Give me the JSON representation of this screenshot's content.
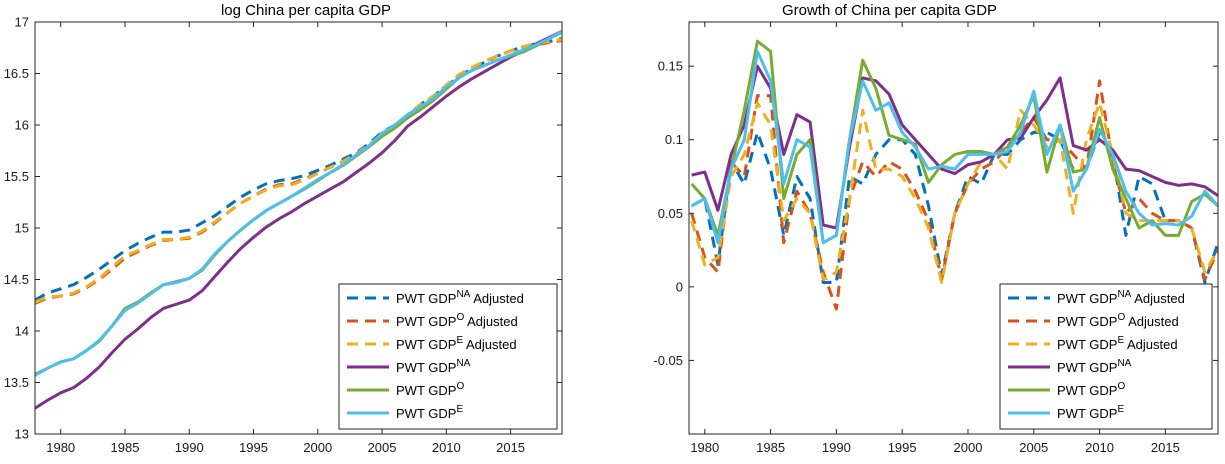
{
  "chart_data": [
    {
      "type": "line",
      "title": "log China per capita GDP",
      "xlabel": "",
      "ylabel": "",
      "xlim": [
        1978,
        2019
      ],
      "ylim": [
        13,
        17
      ],
      "grid": false,
      "legend_position": "bottom-right",
      "x_ticks": [
        "1980",
        "1985",
        "1990",
        "1995",
        "2000",
        "2005",
        "2010",
        "2015"
      ],
      "y_ticks": [
        "13",
        "13.5",
        "14",
        "14.5",
        "15",
        "15.5",
        "16",
        "16.5",
        "17"
      ],
      "x": [
        1978,
        1979,
        1980,
        1981,
        1982,
        1983,
        1984,
        1985,
        1986,
        1987,
        1988,
        1989,
        1990,
        1991,
        1992,
        1993,
        1994,
        1995,
        1996,
        1997,
        1998,
        1999,
        2000,
        2001,
        2002,
        2003,
        2004,
        2005,
        2006,
        2007,
        2008,
        2009,
        2010,
        2011,
        2012,
        2013,
        2014,
        2015,
        2016,
        2017,
        2018,
        2019
      ],
      "series": [
        {
          "name": "PWT GDP",
          "sup": "NA",
          "suffix": " Adjusted",
          "color": "#0072BD",
          "dash": true,
          "values": [
            14.3,
            14.37,
            14.41,
            14.45,
            14.52,
            14.6,
            14.69,
            14.78,
            14.85,
            14.91,
            14.96,
            14.96,
            14.98,
            15.05,
            15.12,
            15.21,
            15.3,
            15.37,
            15.43,
            15.46,
            15.48,
            15.51,
            15.56,
            15.61,
            15.67,
            15.73,
            15.82,
            15.93,
            16.0,
            16.1,
            16.2,
            16.28,
            16.38,
            16.47,
            16.55,
            16.61,
            16.67,
            16.72,
            16.76,
            16.79,
            16.81,
            16.84
          ]
        },
        {
          "name": "PWT GDP",
          "sup": "O",
          "suffix": " Adjusted",
          "color": "#D95319",
          "dash": true,
          "values": [
            14.27,
            14.32,
            14.34,
            14.36,
            14.42,
            14.5,
            14.6,
            14.71,
            14.77,
            14.83,
            14.88,
            14.89,
            14.9,
            14.96,
            15.05,
            15.15,
            15.24,
            15.31,
            15.38,
            15.42,
            15.43,
            15.48,
            15.53,
            15.59,
            15.65,
            15.72,
            15.8,
            15.9,
            15.99,
            16.09,
            16.19,
            16.27,
            16.38,
            16.48,
            16.55,
            16.62,
            16.67,
            16.72,
            16.76,
            16.78,
            16.8,
            16.82
          ]
        },
        {
          "name": "PWT GDP",
          "sup": "E",
          "suffix": " Adjusted",
          "color": "#EDB120",
          "dash": true,
          "values": [
            14.28,
            14.33,
            14.34,
            14.37,
            14.43,
            14.51,
            14.62,
            14.73,
            14.78,
            14.84,
            14.89,
            14.89,
            14.91,
            14.97,
            15.06,
            15.15,
            15.24,
            15.31,
            15.37,
            15.41,
            15.42,
            15.47,
            15.53,
            15.59,
            15.65,
            15.72,
            15.81,
            15.91,
            16.0,
            16.1,
            16.2,
            16.28,
            16.39,
            16.49,
            16.56,
            16.62,
            16.67,
            16.72,
            16.76,
            16.79,
            16.81,
            16.83
          ]
        },
        {
          "name": "PWT GDP",
          "sup": "NA",
          "suffix": "",
          "color": "#7E2F8E",
          "dash": false,
          "values": [
            13.25,
            13.33,
            13.4,
            13.45,
            13.54,
            13.65,
            13.79,
            13.92,
            14.02,
            14.13,
            14.22,
            14.26,
            14.3,
            14.39,
            14.53,
            14.67,
            14.8,
            14.91,
            15.01,
            15.09,
            15.16,
            15.24,
            15.31,
            15.38,
            15.45,
            15.54,
            15.63,
            15.73,
            15.85,
            15.99,
            16.08,
            16.18,
            16.28,
            16.37,
            16.45,
            16.52,
            16.59,
            16.66,
            16.72,
            16.79,
            16.85,
            16.91
          ]
        },
        {
          "name": "PWT GDP",
          "sup": "O",
          "suffix": "",
          "color": "#77AC30",
          "dash": false,
          "values": [
            13.58,
            13.64,
            13.7,
            13.73,
            13.81,
            13.9,
            14.05,
            14.22,
            14.28,
            14.37,
            14.45,
            14.48,
            14.51,
            14.59,
            14.74,
            14.87,
            14.98,
            15.08,
            15.17,
            15.24,
            15.31,
            15.38,
            15.46,
            15.54,
            15.61,
            15.7,
            15.79,
            15.89,
            15.97,
            16.07,
            16.15,
            16.24,
            16.35,
            16.46,
            16.53,
            16.58,
            16.63,
            16.67,
            16.71,
            16.77,
            16.84,
            16.9
          ]
        },
        {
          "name": "PWT GDP",
          "sup": "E",
          "suffix": "",
          "color": "#4DBEEE",
          "dash": false,
          "values": [
            13.57,
            13.64,
            13.7,
            13.73,
            13.81,
            13.91,
            14.05,
            14.2,
            14.27,
            14.36,
            14.45,
            14.47,
            14.51,
            14.6,
            14.75,
            14.87,
            14.98,
            15.08,
            15.17,
            15.24,
            15.31,
            15.39,
            15.47,
            15.54,
            15.62,
            15.71,
            15.8,
            15.92,
            16.0,
            16.1,
            16.18,
            16.26,
            16.37,
            16.46,
            16.53,
            16.58,
            16.63,
            16.68,
            16.73,
            16.78,
            16.84,
            16.91
          ]
        }
      ]
    },
    {
      "type": "line",
      "title": "Growth of China per capita GDP",
      "xlabel": "",
      "ylabel": "",
      "xlim": [
        1978.8,
        2019
      ],
      "ylim": [
        -0.1,
        0.18
      ],
      "grid": false,
      "legend_position": "bottom-right",
      "x_ticks": [
        "1980",
        "1985",
        "1990",
        "1995",
        "2000",
        "2005",
        "2010",
        "2015"
      ],
      "y_ticks": [
        "-0.05",
        "0",
        "0.05",
        "0.1",
        "0.15"
      ],
      "x": [
        1979,
        1980,
        1981,
        1982,
        1983,
        1984,
        1985,
        1986,
        1987,
        1988,
        1989,
        1990,
        1991,
        1992,
        1993,
        1994,
        1995,
        1996,
        1997,
        1998,
        1999,
        2000,
        2001,
        2002,
        2003,
        2004,
        2005,
        2006,
        2007,
        2008,
        2009,
        2010,
        2011,
        2012,
        2013,
        2014,
        2015,
        2016,
        2017,
        2018,
        2019
      ],
      "series": [
        {
          "name": "PWT GDP",
          "sup": "NA",
          "suffix": " Adjusted",
          "color": "#0072BD",
          "dash": true,
          "values": [
            0.055,
            0.06,
            0.015,
            0.085,
            0.07,
            0.105,
            0.08,
            0.035,
            0.075,
            0.06,
            0.003,
            0.003,
            0.075,
            0.07,
            0.09,
            0.1,
            0.1,
            0.09,
            0.055,
            0.008,
            0.05,
            0.075,
            0.07,
            0.09,
            0.09,
            0.1,
            0.105,
            0.105,
            0.1,
            0.08,
            0.08,
            0.105,
            0.09,
            0.035,
            0.075,
            0.07,
            0.045,
            0.045,
            0.04,
            0.003,
            0.03
          ]
        },
        {
          "name": "PWT GDP",
          "sup": "O",
          "suffix": " Adjusted",
          "color": "#D95319",
          "dash": true,
          "values": [
            0.05,
            0.02,
            0.01,
            0.085,
            0.075,
            0.13,
            0.13,
            0.03,
            0.065,
            0.05,
            0.01,
            -0.015,
            0.06,
            0.085,
            0.075,
            0.085,
            0.08,
            0.065,
            0.045,
            0.005,
            0.05,
            0.07,
            0.08,
            0.085,
            0.095,
            0.105,
            0.115,
            0.1,
            0.1,
            0.09,
            0.08,
            0.14,
            0.085,
            0.05,
            0.06,
            0.05,
            0.045,
            0.045,
            0.04,
            0.005,
            0.025
          ]
        },
        {
          "name": "PWT GDP",
          "sup": "E",
          "suffix": " Adjusted",
          "color": "#EDB120",
          "dash": true,
          "values": [
            0.045,
            0.015,
            0.02,
            0.075,
            0.09,
            0.125,
            0.11,
            0.045,
            0.06,
            0.05,
            0.005,
            0.01,
            0.06,
            0.12,
            0.08,
            0.08,
            0.075,
            0.06,
            0.04,
            0.003,
            0.05,
            0.07,
            0.085,
            0.09,
            0.08,
            0.12,
            0.11,
            0.095,
            0.1,
            0.05,
            0.1,
            0.125,
            0.09,
            0.05,
            0.045,
            0.045,
            0.045,
            0.045,
            0.04,
            0.01,
            0.025
          ]
        },
        {
          "name": "PWT GDP",
          "sup": "NA",
          "suffix": "",
          "color": "#7E2F8E",
          "dash": false,
          "values": [
            0.076,
            0.078,
            0.052,
            0.09,
            0.11,
            0.15,
            0.135,
            0.09,
            0.117,
            0.112,
            0.042,
            0.04,
            0.095,
            0.142,
            0.14,
            0.131,
            0.11,
            0.1,
            0.09,
            0.08,
            0.077,
            0.083,
            0.085,
            0.09,
            0.1,
            0.101,
            0.115,
            0.127,
            0.142,
            0.096,
            0.093,
            0.1,
            0.093,
            0.08,
            0.079,
            0.075,
            0.071,
            0.069,
            0.07,
            0.068,
            0.062
          ]
        },
        {
          "name": "PWT GDP",
          "sup": "O",
          "suffix": "",
          "color": "#77AC30",
          "dash": false,
          "values": [
            0.07,
            0.06,
            0.035,
            0.08,
            0.12,
            0.167,
            0.16,
            0.06,
            0.09,
            0.1,
            0.03,
            0.035,
            0.1,
            0.154,
            0.135,
            0.103,
            0.1,
            0.097,
            0.071,
            0.083,
            0.09,
            0.092,
            0.092,
            0.09,
            0.095,
            0.11,
            0.13,
            0.078,
            0.11,
            0.078,
            0.08,
            0.115,
            0.08,
            0.06,
            0.04,
            0.045,
            0.035,
            0.035,
            0.058,
            0.063,
            0.055
          ]
        },
        {
          "name": "PWT GDP",
          "sup": "E",
          "suffix": "",
          "color": "#4DBEEE",
          "dash": false,
          "values": [
            0.055,
            0.06,
            0.03,
            0.08,
            0.1,
            0.16,
            0.14,
            0.07,
            0.1,
            0.095,
            0.03,
            0.035,
            0.1,
            0.14,
            0.12,
            0.125,
            0.105,
            0.095,
            0.08,
            0.082,
            0.08,
            0.09,
            0.09,
            0.09,
            0.092,
            0.105,
            0.133,
            0.09,
            0.11,
            0.065,
            0.08,
            0.107,
            0.09,
            0.065,
            0.05,
            0.042,
            0.043,
            0.042,
            0.048,
            0.065,
            0.055
          ]
        }
      ]
    }
  ]
}
